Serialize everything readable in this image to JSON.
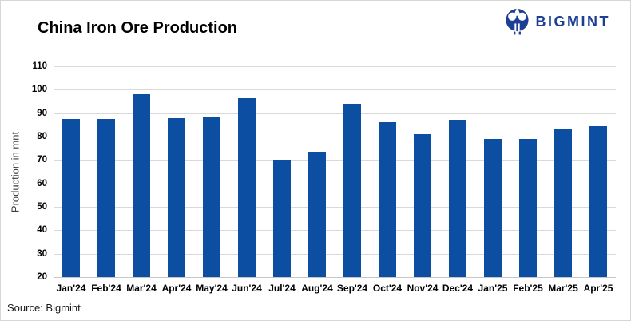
{
  "header": {
    "title": "China Iron Ore Production",
    "logo": {
      "brand": "BIGMINT",
      "color": "#1c3e94",
      "icon": "bigmint-mark-icon"
    }
  },
  "chart_data": {
    "type": "bar",
    "title": "China Iron Ore Production",
    "categories": [
      "Jan'24",
      "Feb'24",
      "Mar'24",
      "Apr'24",
      "May'24",
      "Jun'24",
      "Jul'24",
      "Aug'24",
      "Sep'24",
      "Oct'24",
      "Nov'24",
      "Dec'24",
      "Jan'25",
      "Feb'25",
      "Mar'25",
      "Apr'25"
    ],
    "values": [
      87.6,
      87.6,
      98.2,
      87.7,
      88.2,
      96.5,
      70.0,
      73.4,
      93.9,
      86.2,
      81.1,
      87.2,
      78.9,
      79.0,
      83.2,
      84.4
    ],
    "xlabel": "",
    "ylabel": "Production in mnt",
    "ylim": [
      20,
      110
    ],
    "ytick_step": 10,
    "bar_color": "#0b4ea2",
    "gridline_color": "#d9d9d9",
    "grid": "horizontal",
    "legend_position": "none"
  },
  "footer": {
    "source": "Source: Bigmint"
  }
}
